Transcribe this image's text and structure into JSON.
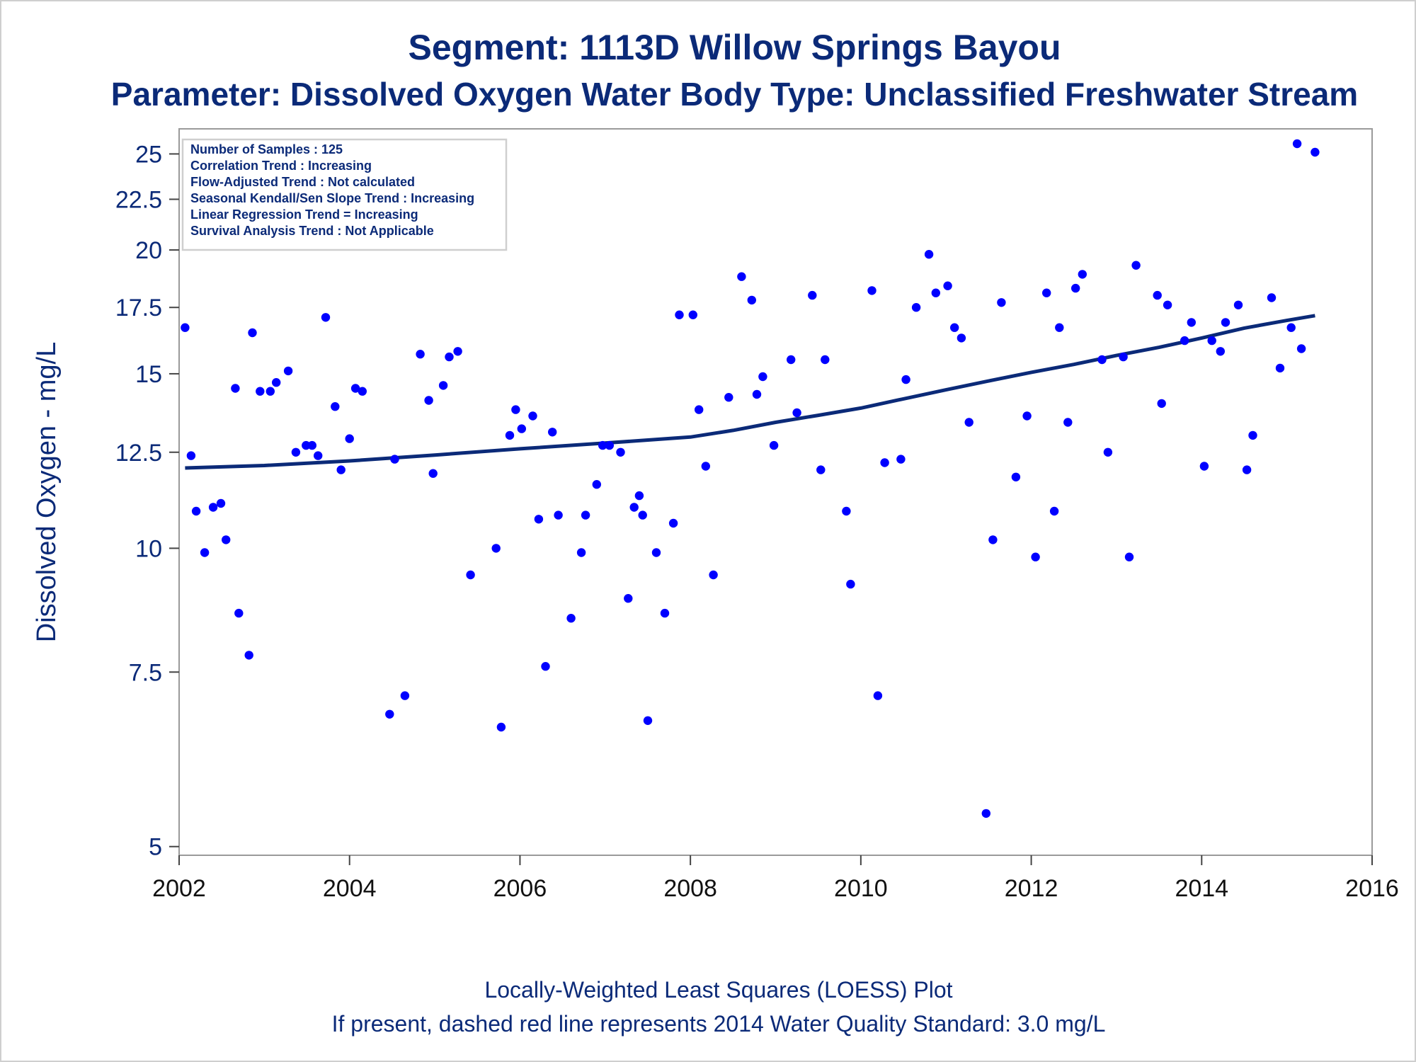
{
  "title": "Segment: 1113D  Willow Springs Bayou",
  "subtitle": "Parameter: Dissolved Oxygen   Water Body Type: Unclassified Freshwater Stream",
  "footnotes": [
    "Locally-Weighted Least Squares (LOESS) Plot",
    "If present, dashed red line represents 2014 Water Quality Standard: 3.0 mg/L"
  ],
  "chart_data": {
    "type": "scatter",
    "title": "Segment: 1113D  Willow Springs Bayou",
    "subtitle": "Parameter: Dissolved Oxygen   Water Body Type: Unclassified Freshwater Stream",
    "xlabel": "",
    "ylabel": "Dissolved Oxygen - mg/L",
    "xlim": [
      2002,
      2016
    ],
    "ylim": [
      4.9,
      26.5
    ],
    "yscale": "log",
    "xticks": [
      "2002",
      "2004",
      "2006",
      "2008",
      "2010",
      "2012",
      "2014",
      "2016"
    ],
    "yticks": [
      "5",
      "7.5",
      "10",
      "12.5",
      "15",
      "17.5",
      "20",
      "22.5",
      "25"
    ],
    "grid": false,
    "colors": {
      "points": "#0000ff",
      "trend": "#0b2a78",
      "text": "#0b2a78"
    },
    "info_box": {
      "position": "top-left",
      "lines": [
        "Number of Samples : 125",
        "Correlation Trend : Increasing",
        "Flow-Adjusted Trend : Not calculated",
        "Seasonal Kendall/Sen Slope Trend : Increasing",
        "Linear Regression Trend = Increasing",
        "Survival Analysis Trend : Not Applicable"
      ]
    },
    "series": [
      {
        "type": "scatter",
        "points": [
          [
            2002.07,
            16.7
          ],
          [
            2002.14,
            12.4
          ],
          [
            2002.2,
            10.9
          ],
          [
            2002.3,
            9.9
          ],
          [
            2002.4,
            11.0
          ],
          [
            2002.49,
            11.1
          ],
          [
            2002.55,
            10.2
          ],
          [
            2002.66,
            14.5
          ],
          [
            2002.7,
            8.6
          ],
          [
            2002.82,
            7.8
          ],
          [
            2002.86,
            16.5
          ],
          [
            2002.95,
            14.4
          ],
          [
            2003.07,
            14.4
          ],
          [
            2003.14,
            14.7
          ],
          [
            2003.28,
            15.1
          ],
          [
            2003.37,
            12.5
          ],
          [
            2003.49,
            12.7
          ],
          [
            2003.56,
            12.7
          ],
          [
            2003.63,
            12.4
          ],
          [
            2003.72,
            17.1
          ],
          [
            2003.83,
            13.9
          ],
          [
            2003.9,
            12.0
          ],
          [
            2004.0,
            12.9
          ],
          [
            2004.07,
            14.5
          ],
          [
            2004.15,
            14.4
          ],
          [
            2004.47,
            6.8
          ],
          [
            2004.53,
            12.3
          ],
          [
            2004.65,
            7.1
          ],
          [
            2004.83,
            15.7
          ],
          [
            2004.93,
            14.1
          ],
          [
            2004.98,
            11.9
          ],
          [
            2005.1,
            14.6
          ],
          [
            2005.17,
            15.6
          ],
          [
            2005.27,
            15.8
          ],
          [
            2005.42,
            9.4
          ],
          [
            2005.72,
            10.0
          ],
          [
            2005.78,
            6.6
          ],
          [
            2005.88,
            13.0
          ],
          [
            2005.95,
            13.8
          ],
          [
            2006.02,
            13.2
          ],
          [
            2006.15,
            13.6
          ],
          [
            2006.22,
            10.7
          ],
          [
            2006.3,
            7.6
          ],
          [
            2006.38,
            13.1
          ],
          [
            2006.45,
            10.8
          ],
          [
            2006.6,
            8.5
          ],
          [
            2006.72,
            9.9
          ],
          [
            2006.77,
            10.8
          ],
          [
            2006.9,
            11.6
          ],
          [
            2006.97,
            12.7
          ],
          [
            2007.05,
            12.7
          ],
          [
            2007.18,
            12.5
          ],
          [
            2007.27,
            8.9
          ],
          [
            2007.34,
            11.0
          ],
          [
            2007.4,
            11.3
          ],
          [
            2007.44,
            10.8
          ],
          [
            2007.5,
            6.7
          ],
          [
            2007.6,
            9.9
          ],
          [
            2007.7,
            8.6
          ],
          [
            2007.8,
            10.6
          ],
          [
            2007.87,
            17.2
          ],
          [
            2008.03,
            17.2
          ],
          [
            2008.1,
            13.8
          ],
          [
            2008.18,
            12.1
          ],
          [
            2008.27,
            9.4
          ],
          [
            2008.45,
            14.2
          ],
          [
            2008.6,
            18.8
          ],
          [
            2008.72,
            17.8
          ],
          [
            2008.78,
            14.3
          ],
          [
            2008.85,
            14.9
          ],
          [
            2008.98,
            12.7
          ],
          [
            2009.18,
            15.5
          ],
          [
            2009.25,
            13.7
          ],
          [
            2009.43,
            18.0
          ],
          [
            2009.53,
            12.0
          ],
          [
            2009.58,
            15.5
          ],
          [
            2009.83,
            10.9
          ],
          [
            2009.88,
            9.2
          ],
          [
            2010.13,
            18.2
          ],
          [
            2010.2,
            7.1
          ],
          [
            2010.28,
            12.2
          ],
          [
            2010.47,
            12.3
          ],
          [
            2010.53,
            14.8
          ],
          [
            2010.65,
            17.5
          ],
          [
            2010.8,
            19.8
          ],
          [
            2010.88,
            18.1
          ],
          [
            2011.02,
            18.4
          ],
          [
            2011.1,
            16.7
          ],
          [
            2011.18,
            16.3
          ],
          [
            2011.27,
            13.4
          ],
          [
            2011.47,
            5.4
          ],
          [
            2011.55,
            10.2
          ],
          [
            2011.65,
            17.7
          ],
          [
            2011.82,
            11.8
          ],
          [
            2011.95,
            13.6
          ],
          [
            2012.05,
            9.8
          ],
          [
            2012.18,
            18.1
          ],
          [
            2012.27,
            10.9
          ],
          [
            2012.33,
            16.7
          ],
          [
            2012.43,
            13.4
          ],
          [
            2012.52,
            18.3
          ],
          [
            2012.6,
            18.9
          ],
          [
            2012.83,
            15.5
          ],
          [
            2012.9,
            12.5
          ],
          [
            2013.08,
            15.6
          ],
          [
            2013.15,
            9.8
          ],
          [
            2013.23,
            19.3
          ],
          [
            2013.48,
            18.0
          ],
          [
            2013.53,
            14.0
          ],
          [
            2013.6,
            17.6
          ],
          [
            2013.8,
            16.2
          ],
          [
            2013.88,
            16.9
          ],
          [
            2014.03,
            12.1
          ],
          [
            2014.12,
            16.2
          ],
          [
            2014.22,
            15.8
          ],
          [
            2014.28,
            16.9
          ],
          [
            2014.43,
            17.6
          ],
          [
            2014.53,
            12.0
          ],
          [
            2014.6,
            13.0
          ],
          [
            2014.82,
            17.9
          ],
          [
            2014.92,
            15.2
          ],
          [
            2015.05,
            16.7
          ],
          [
            2015.12,
            25.6
          ],
          [
            2015.17,
            15.9
          ],
          [
            2015.33,
            25.1
          ]
        ]
      },
      {
        "type": "line",
        "points": [
          [
            2002.07,
            12.05
          ],
          [
            2003.0,
            12.12
          ],
          [
            2004.0,
            12.25
          ],
          [
            2005.0,
            12.42
          ],
          [
            2006.0,
            12.6
          ],
          [
            2007.0,
            12.77
          ],
          [
            2008.0,
            12.95
          ],
          [
            2008.5,
            13.15
          ],
          [
            2009.0,
            13.4
          ],
          [
            2009.5,
            13.62
          ],
          [
            2010.0,
            13.85
          ],
          [
            2010.5,
            14.15
          ],
          [
            2011.0,
            14.45
          ],
          [
            2011.5,
            14.75
          ],
          [
            2012.0,
            15.05
          ],
          [
            2012.5,
            15.33
          ],
          [
            2013.0,
            15.65
          ],
          [
            2013.5,
            15.95
          ],
          [
            2014.0,
            16.3
          ],
          [
            2014.5,
            16.68
          ],
          [
            2015.0,
            16.98
          ],
          [
            2015.33,
            17.17
          ]
        ]
      }
    ]
  }
}
